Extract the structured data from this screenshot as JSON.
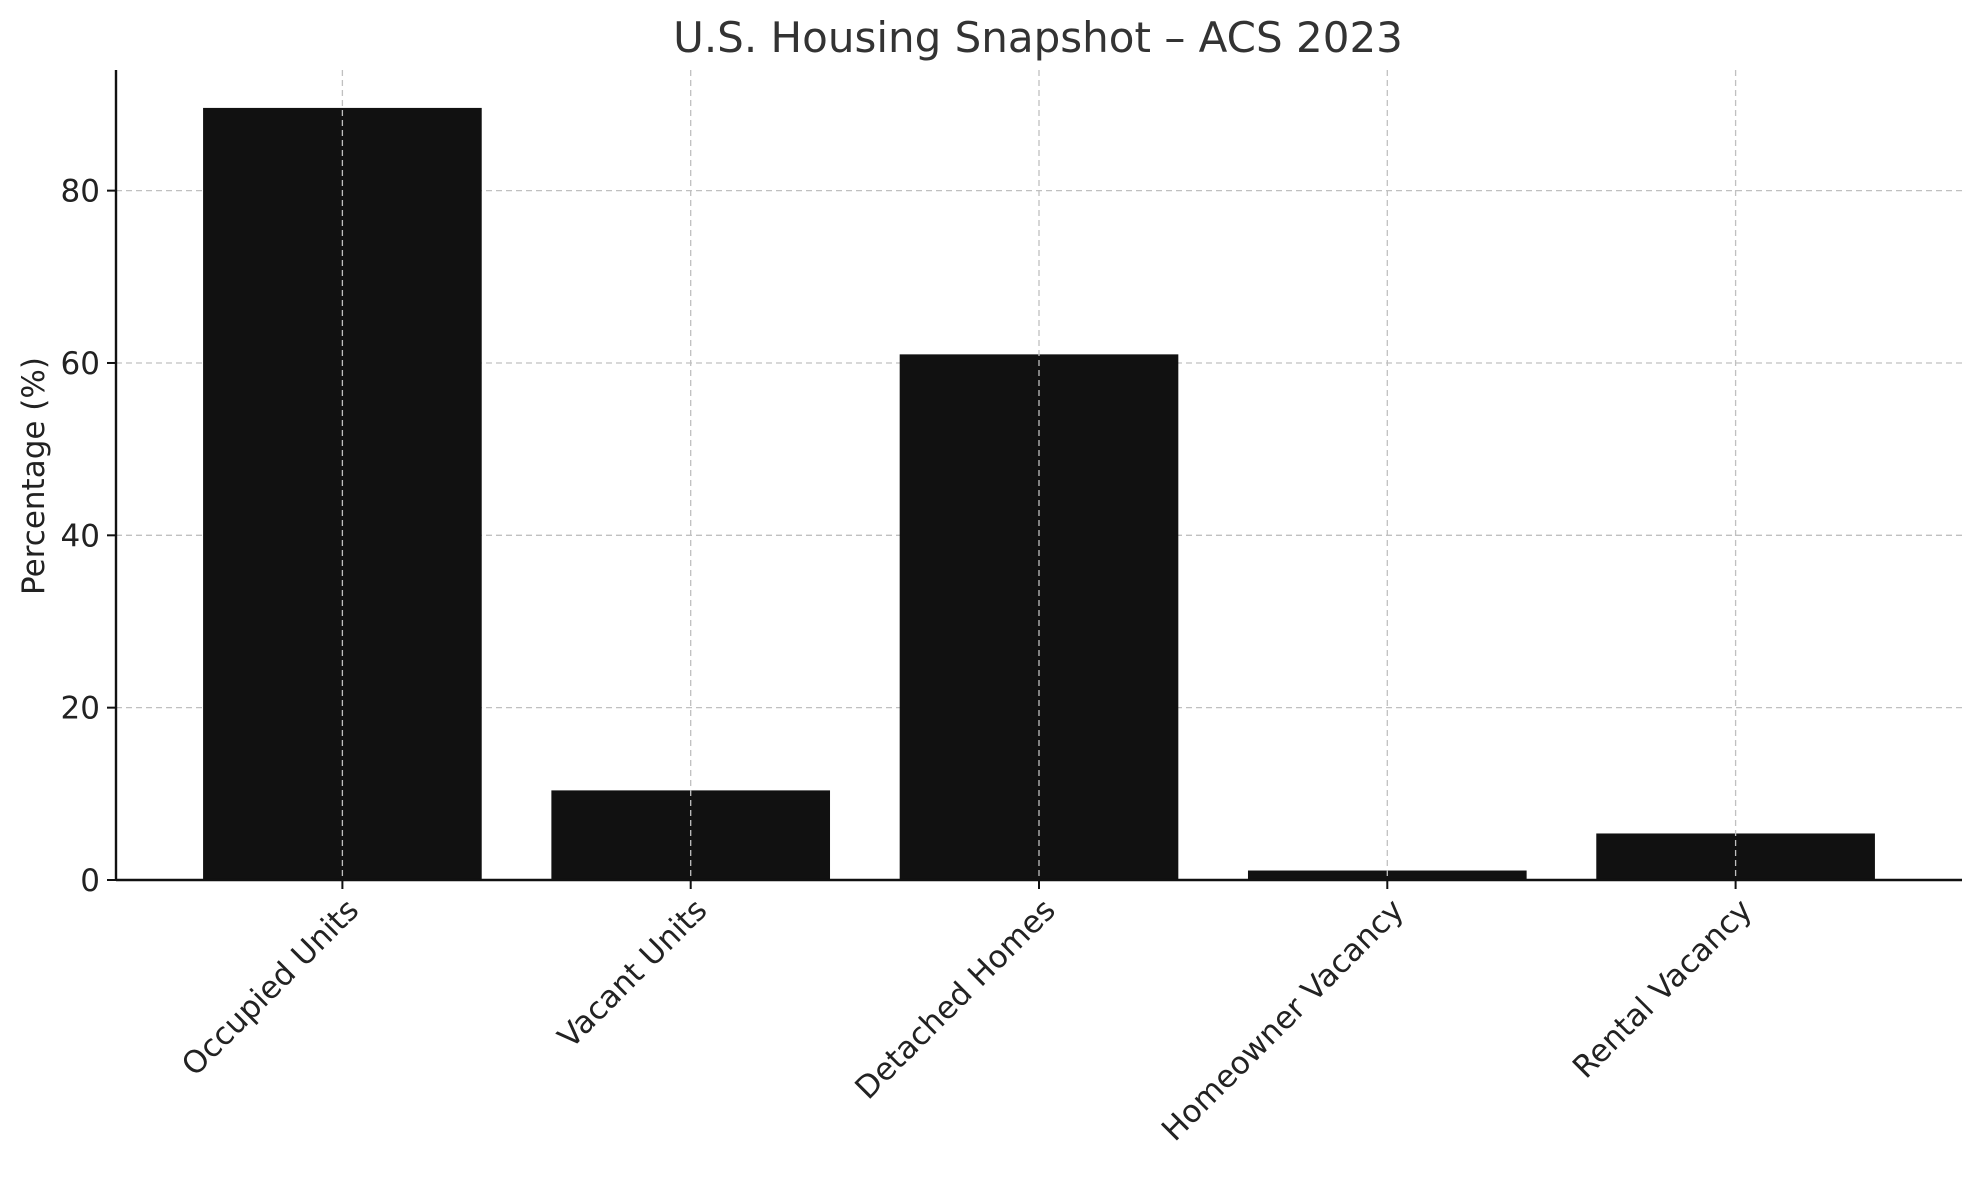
{
  "chart_data": {
    "type": "bar",
    "title": "U.S. Housing Snapshot – ACS 2023",
    "xlabel": "",
    "ylabel": "Percentage (%)",
    "categories": [
      "Occupied Units",
      "Vacant Units",
      "Detached Homes",
      "Homeowner Vacancy",
      "Rental Vacancy"
    ],
    "values": [
      89.6,
      10.4,
      61.0,
      1.1,
      5.4
    ],
    "ylim": [
      0,
      94
    ],
    "yticks": [
      0,
      20,
      40,
      60,
      80
    ],
    "grid": true,
    "bar_color": "#111111",
    "grid_color": "#c0c0c0"
  }
}
